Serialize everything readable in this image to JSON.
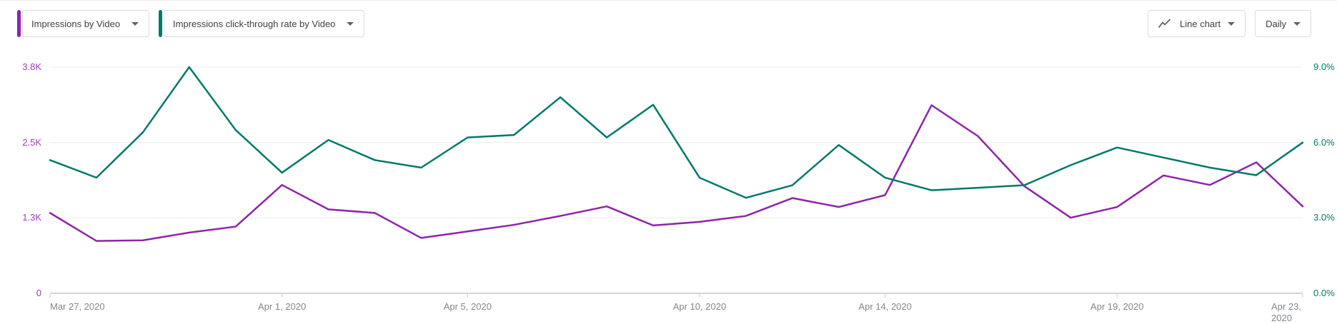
{
  "toolbar": {
    "metric_selectors": [
      {
        "label": "Impressions by Video",
        "accent_color": "#8e24aa"
      },
      {
        "label": "Impressions click-through rate by Video",
        "accent_color": "#00796b"
      }
    ],
    "chart_type_selector": {
      "label": "Line chart",
      "icon": "line-chart-icon"
    },
    "interval_selector": {
      "label": "Daily"
    }
  },
  "chart_data": {
    "type": "line",
    "title": "",
    "xlabel": "",
    "ylabel_left": "Impressions",
    "ylabel_right": "Impressions click-through rate",
    "grid": true,
    "legend_position": "none",
    "x": [
      "Mar 27, 2020",
      "Mar 28, 2020",
      "Mar 29, 2020",
      "Mar 30, 2020",
      "Mar 31, 2020",
      "Apr 1, 2020",
      "Apr 2, 2020",
      "Apr 3, 2020",
      "Apr 4, 2020",
      "Apr 5, 2020",
      "Apr 6, 2020",
      "Apr 7, 2020",
      "Apr 8, 2020",
      "Apr 9, 2020",
      "Apr 10, 2020",
      "Apr 11, 2020",
      "Apr 12, 2020",
      "Apr 13, 2020",
      "Apr 14, 2020",
      "Apr 15, 2020",
      "Apr 16, 2020",
      "Apr 17, 2020",
      "Apr 18, 2020",
      "Apr 19, 2020",
      "Apr 20, 2020",
      "Apr 21, 2020",
      "Apr 22, 2020",
      "Apr 23, 2020"
    ],
    "x_ticks": [
      {
        "label": "Mar 27, 2020",
        "index": 0,
        "align": "left"
      },
      {
        "label": "Apr 1, 2020",
        "index": 5,
        "align": "center"
      },
      {
        "label": "Apr 5, 2020",
        "index": 9,
        "align": "center"
      },
      {
        "label": "Apr 10, 2020",
        "index": 14,
        "align": "center"
      },
      {
        "label": "Apr 14, 2020",
        "index": 18,
        "align": "center"
      },
      {
        "label": "Apr 19, 2020",
        "index": 23,
        "align": "center"
      },
      {
        "label": "Apr 23, 2020",
        "index": 27,
        "align": "right"
      }
    ],
    "series": [
      {
        "name": "Impressions",
        "axis": "left",
        "color": "#8e24aa",
        "values": [
          1350,
          880,
          890,
          1020,
          1120,
          1820,
          1410,
          1350,
          930,
          1040,
          1150,
          1300,
          1460,
          1140,
          1200,
          1300,
          1600,
          1450,
          1650,
          3160,
          2640,
          1800,
          1270,
          1450,
          1980,
          1820,
          2200,
          1460
        ]
      },
      {
        "name": "Impressions click-through rate",
        "axis": "right",
        "color": "#00796b",
        "values": [
          5.3,
          4.6,
          6.4,
          9.0,
          6.5,
          4.8,
          6.1,
          5.3,
          5.0,
          6.2,
          6.3,
          7.8,
          6.2,
          7.5,
          4.6,
          3.8,
          4.3,
          5.9,
          4.6,
          4.1,
          4.2,
          4.3,
          5.1,
          5.8,
          5.4,
          5.0,
          4.7,
          6.0
        ]
      }
    ],
    "left_axis": {
      "max": 3800,
      "ticks": [
        "0",
        "1.3K",
        "2.5K",
        "3.8K"
      ],
      "label_color": "#9d3cb5"
    },
    "right_axis": {
      "max": 9,
      "ticks": [
        "0.0%",
        "3.0%",
        "6.0%",
        "9.0%"
      ],
      "label_color": "#00796b"
    }
  },
  "colors": {
    "gridline": "#ececec",
    "baseline": "#a8a8a8",
    "tick_mark": "#c8c8c8",
    "chip_border": "#dadce0",
    "chip_text": "#3c4043",
    "icon": "#5f6368"
  }
}
